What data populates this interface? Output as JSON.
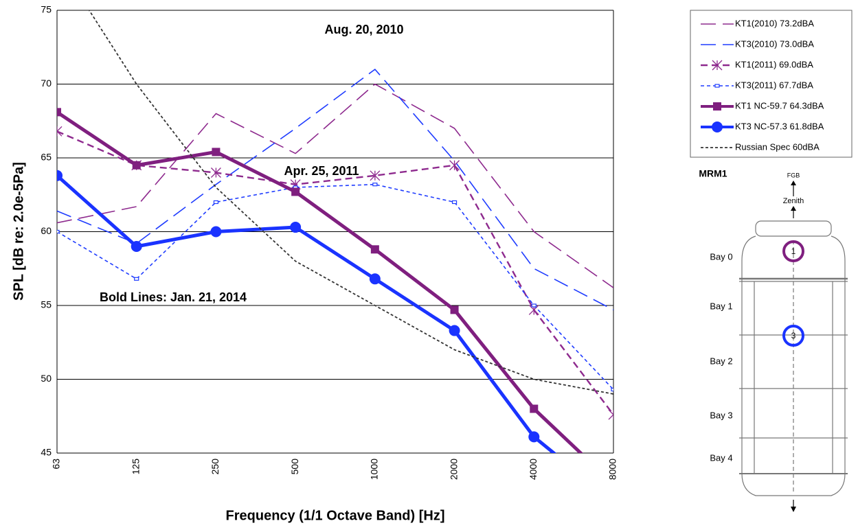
{
  "chart_data": {
    "type": "line",
    "y_label": "SPL [dB re: 2.0e-5Pa]",
    "x_label": "Frequency (1/1 Octave Band) [Hz]",
    "categories": [
      "63",
      "125",
      "250",
      "500",
      "1000",
      "2000",
      "4000",
      "8000"
    ],
    "ylim": [
      45,
      75
    ],
    "yticks": [
      45,
      50,
      55,
      60,
      65,
      70,
      75
    ],
    "grid": true,
    "annotations": [
      "Aug. 20, 2010",
      "Apr. 25, 2011",
      "Bold Lines: Jan. 21, 2014"
    ],
    "series": [
      {
        "name": "KT1(2010) 73.2dBA",
        "color": "#8e2a8e",
        "dash": "long",
        "width": 1.6,
        "values": [
          60.6,
          61.7,
          68,
          65.3,
          70,
          67,
          60,
          56.2
        ]
      },
      {
        "name": "KT3(2010) 73.0dBA",
        "color": "#1f3cff",
        "dash": "long",
        "width": 1.6,
        "values": [
          61.4,
          59.2,
          63.2,
          67,
          71,
          64.8,
          57.5,
          54.7
        ]
      },
      {
        "name": "KT1(2011) 69.0dBA",
        "color": "#8e2a8e",
        "dash": "medium",
        "width": 2.4,
        "marker": "asterisk",
        "values": [
          66.8,
          64.5,
          64,
          63.2,
          63.8,
          64.5,
          54.7,
          47.6
        ]
      },
      {
        "name": "KT3(2011) 67.7dBA",
        "color": "#1f3cff",
        "dash": "short",
        "width": 1.6,
        "marker": "open-square",
        "values": [
          60,
          56.8,
          62,
          63,
          63.2,
          62,
          55,
          49.3
        ]
      },
      {
        "name": "KT1 NC-59.7 64.3dBA",
        "color": "#7f1f7f",
        "dash": "solid",
        "width": 5,
        "marker": "square",
        "values": [
          68.1,
          64.5,
          65.4,
          62.7,
          58.8,
          54.7,
          48,
          42.9
        ]
      },
      {
        "name": "KT3 NC-57.3 61.8dBA",
        "color": "#1a33ff",
        "dash": "solid",
        "width": 5,
        "marker": "circle",
        "values": [
          63.8,
          59,
          60,
          60.3,
          56.8,
          53.3,
          46.1,
          41.7
        ]
      },
      {
        "name": "Russian Spec 60dBA",
        "color": "#333333",
        "dash": "dot",
        "width": 1.8,
        "values": [
          78.4,
          70,
          63,
          58,
          55,
          52,
          50,
          49
        ]
      }
    ]
  },
  "diagram": {
    "title": "MRM1",
    "top_labels": [
      "FGB",
      "Zenith"
    ],
    "bays": [
      "Bay 0",
      "Bay 1",
      "Bay 2",
      "Bay 3",
      "Bay 4"
    ],
    "ports": [
      "1",
      "3"
    ]
  }
}
